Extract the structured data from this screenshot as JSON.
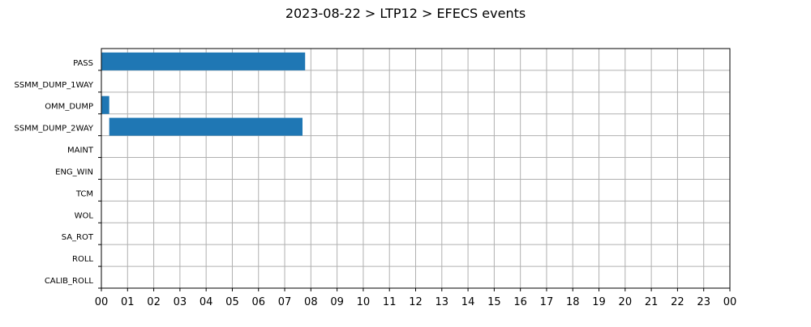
{
  "title": "2023-08-22 > LTP12 > EFECS events",
  "chart_data": {
    "type": "gantt",
    "title": "2023-08-22 > LTP12 > EFECS events",
    "xlabel": "",
    "ylabel": "",
    "xlim": [
      0,
      24
    ],
    "x_tick_labels": [
      "00",
      "01",
      "02",
      "03",
      "04",
      "05",
      "06",
      "07",
      "08",
      "09",
      "10",
      "11",
      "12",
      "13",
      "14",
      "15",
      "16",
      "17",
      "18",
      "19",
      "20",
      "21",
      "22",
      "23",
      "00"
    ],
    "categories": [
      "PASS",
      "SSMM_DUMP_1WAY",
      "OMM_DUMP",
      "SSMM_DUMP_2WAY",
      "MAINT",
      "ENG_WIN",
      "TCM",
      "WOL",
      "SA_ROT",
      "ROLL",
      "CALIB_ROLL"
    ],
    "bars": [
      {
        "category": "PASS",
        "start": 0.0,
        "end": 7.78
      },
      {
        "category": "OMM_DUMP",
        "start": 0.0,
        "end": 0.3
      },
      {
        "category": "SSMM_DUMP_2WAY",
        "start": 0.3,
        "end": 7.68
      }
    ],
    "grid": true,
    "bar_color": "#1f77b4",
    "grid_color": "#b0b0b0"
  }
}
